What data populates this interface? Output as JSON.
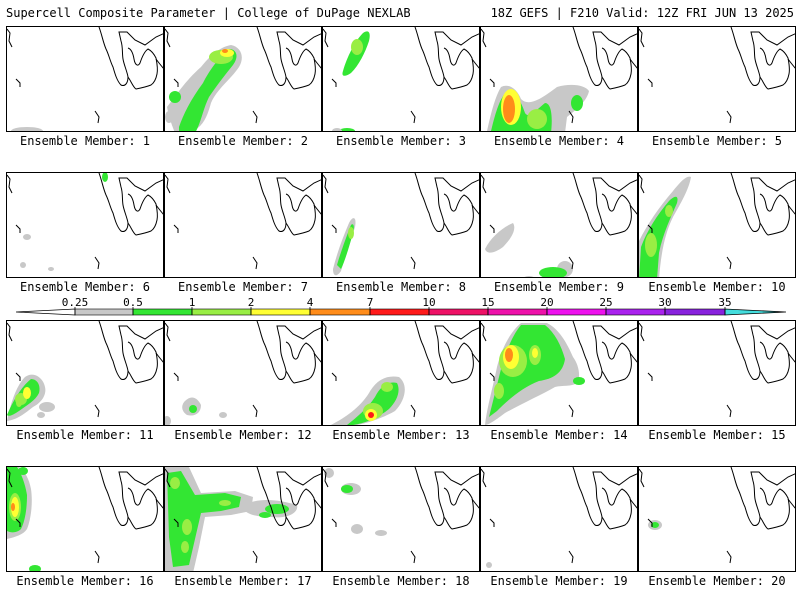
{
  "header": {
    "left_title": "Supercell Composite Parameter | College of DuPage NEXLAB",
    "right_title": "18Z GEFS | F210 Valid: 12Z FRI JUN 13 2025"
  },
  "colorbar": {
    "ticks": [
      "0.25",
      "0.5",
      "1",
      "2",
      "4",
      "7",
      "10",
      "15",
      "20",
      "25",
      "30",
      "35"
    ],
    "colors": [
      "#c8c8c8",
      "#33e633",
      "#99ee44",
      "#ffff33",
      "#ff8c1a",
      "#ff1a1a",
      "#ee1166",
      "#ee11aa",
      "#ee11ee",
      "#aa22ee",
      "#8822dd",
      "#aa66dd",
      "#44dddd"
    ]
  },
  "members": [
    {
      "label": "Ensemble Member: 1"
    },
    {
      "label": "Ensemble Member: 2"
    },
    {
      "label": "Ensemble Member: 3"
    },
    {
      "label": "Ensemble Member: 4"
    },
    {
      "label": "Ensemble Member: 5"
    },
    {
      "label": "Ensemble Member: 6"
    },
    {
      "label": "Ensemble Member: 7"
    },
    {
      "label": "Ensemble Member: 8"
    },
    {
      "label": "Ensemble Member: 9"
    },
    {
      "label": "Ensemble Member: 10"
    },
    {
      "label": "Ensemble Member: 11"
    },
    {
      "label": "Ensemble Member: 12"
    },
    {
      "label": "Ensemble Member: 13"
    },
    {
      "label": "Ensemble Member: 14"
    },
    {
      "label": "Ensemble Member: 15"
    },
    {
      "label": "Ensemble Member: 16"
    },
    {
      "label": "Ensemble Member: 17"
    },
    {
      "label": "Ensemble Member: 18"
    },
    {
      "label": "Ensemble Member: 19"
    },
    {
      "label": "Ensemble Member: 20"
    }
  ]
}
